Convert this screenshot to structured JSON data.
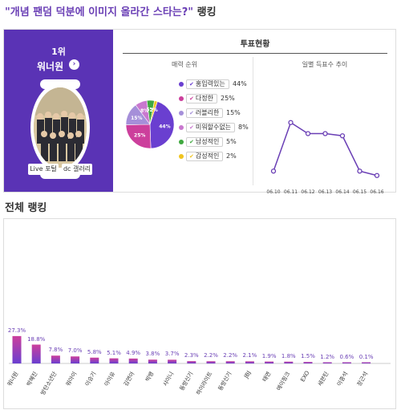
{
  "page": {
    "title": "\"개념 팬덤 덕분에 이미지 올라간 스타는?\"",
    "title_suffix": "랭킹"
  },
  "winner": {
    "rank_label": "1위",
    "name": "워너원",
    "arrow": "›",
    "live_button": "Live 포털",
    "gallery_button": "dc 갤러리",
    "accent_color": "#5a33b5"
  },
  "vote_status": {
    "title": "투표현황",
    "charm_title": "매력 순위",
    "daily_title": "일별 득표수 추이"
  },
  "chart_data": [
    {
      "type": "pie",
      "title": "매력 순위",
      "labels": [
        "홍입력있는",
        "다정한",
        "러블리한",
        "미워할수없는",
        "남성적인",
        "감성적인"
      ],
      "values": [
        44,
        25,
        15,
        8,
        5,
        2
      ],
      "value_labels": [
        "44%",
        "25%",
        "15%",
        "8%",
        "5%",
        "2%"
      ],
      "slice_labels": [
        "44%",
        "25%",
        "15%",
        "8%",
        "5%",
        "2%"
      ],
      "colors": [
        "#6a3fd0",
        "#cc3f9c",
        "#a58fd9",
        "#c978cf",
        "#3fa83f",
        "#f0c420"
      ]
    },
    {
      "type": "line",
      "title": "일별 득표수 추이",
      "x": [
        "06.10",
        "06.11",
        "06.12",
        "06.13",
        "06.14",
        "06.15",
        "06.16"
      ],
      "values": [
        5,
        27,
        22,
        22,
        21,
        5,
        3
      ],
      "ylim": [
        0,
        40
      ],
      "color": "#6a3fb5"
    },
    {
      "type": "bar",
      "title": "전체 랭킹",
      "categories": [
        "워너원",
        "박혜진",
        "방탄소년단",
        "워아이",
        "이승기",
        "아이유",
        "김연아",
        "빅뱅",
        "샤이니",
        "동방신기",
        "하이라이트",
        "동방신기",
        "JBJ",
        "태연",
        "에이핑크",
        "EXO",
        "세븐틴",
        "이종석",
        "장근석"
      ],
      "values": [
        27.3,
        18.8,
        7.8,
        7.0,
        5.8,
        5.1,
        4.9,
        3.8,
        3.7,
        2.3,
        2.2,
        2.2,
        2.1,
        1.9,
        1.8,
        1.5,
        1.2,
        0.6,
        0.1
      ],
      "value_labels": [
        "27.3%",
        "18.8%",
        "7.8%",
        "7.0%",
        "5.8%",
        "5.1%",
        "4.9%",
        "3.8%",
        "3.7%",
        "2.3%",
        "2.2%",
        "2.2%",
        "2.1%",
        "1.9%",
        "1.8%",
        "1.5%",
        "1.2%",
        "0.6%",
        "0.1%"
      ],
      "ylim": [
        0,
        200
      ],
      "colors": [
        "#cc3f9c",
        "#6a3fd0"
      ]
    }
  ],
  "ranking": {
    "title": "전체 랭킹"
  }
}
